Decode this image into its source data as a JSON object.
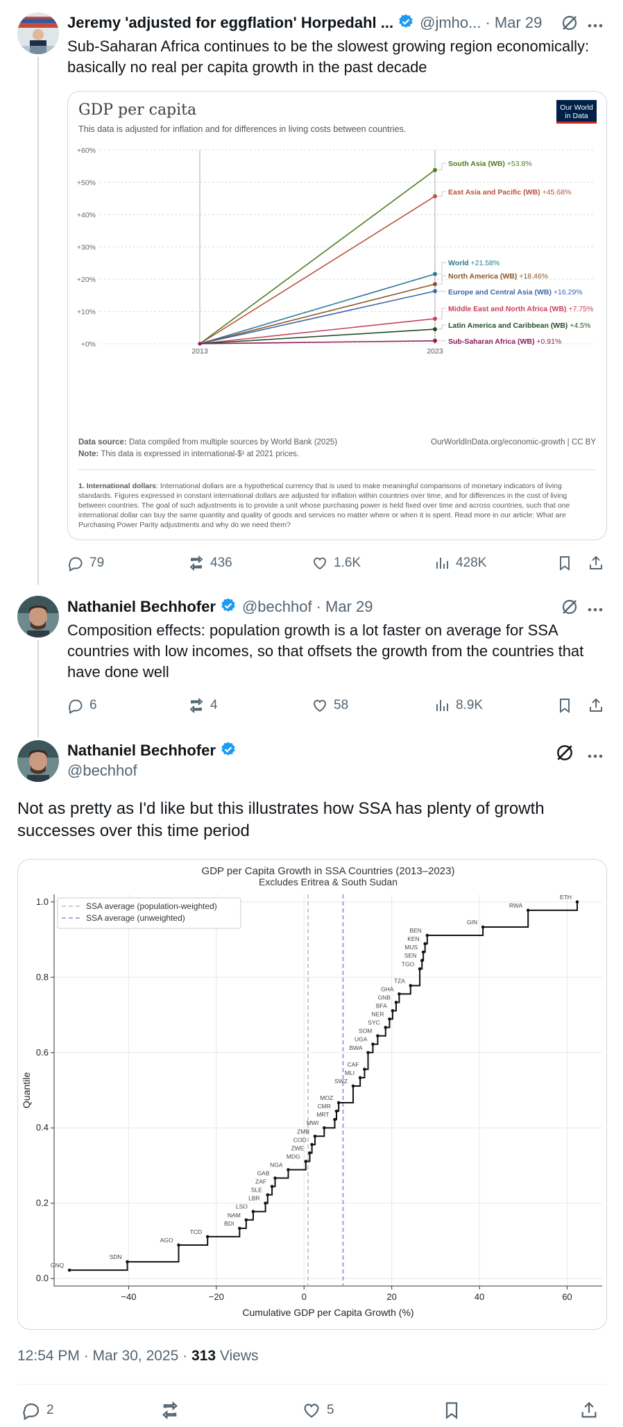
{
  "tweet1": {
    "name": "Jeremy 'adjusted for eggflation' Horpedahl ...",
    "handle": "@jmho...",
    "date": "· Mar 29",
    "text": "Sub-Saharan Africa continues to be the slowest growing region economically: basically no real per capita growth in the past decade",
    "stats": {
      "replies": "79",
      "retweets": "436",
      "likes": "1.6K",
      "views": "428K"
    },
    "chart": {
      "title": "GDP per capita",
      "subtitle": "This data is adjusted for inflation and for differences in living costs between countries.",
      "logo_line1": "Our World",
      "logo_line2": "in Data",
      "source_label": "Data source:",
      "source_text": "Data compiled from multiple sources by World Bank (2025)",
      "note_label": "Note:",
      "note_text": "This data is expressed in international-$¹ at 2021 prices.",
      "credit": "OurWorldInData.org/economic-growth | CC BY",
      "footnote_label": "1. International dollars",
      "footnote_text": ": International dollars are a hypothetical currency that is used to make meaningful comparisons of monetary indicators of living standards. Figures expressed in constant international dollars are adjusted for inflation within countries over time, and for differences in the cost of living between countries. The goal of such adjustments is to provide a unit whose purchasing power is held fixed over time and across countries, such that one international dollar can buy the same quantity and quality of goods and services no matter where or when it is spent. Read more in our article: What are Purchasing Power Parity adjustments and why do we need them?"
    }
  },
  "tweet2": {
    "name": "Nathaniel Bechhofer",
    "handle": "@bechhof",
    "date": "· Mar 29",
    "text": "Composition effects: population growth is a lot faster on average for SSA countries with low incomes, so that offsets the growth from the countries that have done well",
    "stats": {
      "replies": "6",
      "retweets": "4",
      "likes": "58",
      "views": "8.9K"
    }
  },
  "tweet3": {
    "name": "Nathaniel Bechhofer",
    "handle": "@bechhof",
    "text": "Not as pretty as I'd like but this illustrates how SSA has plenty of growth successes over this time period",
    "time": "12:54 PM · Mar 30, 2025 ·",
    "views_count": "313",
    "views_label": "Views",
    "stats": {
      "replies": "2",
      "likes": "5"
    }
  },
  "colors": {
    "accent": "#1d9bf0",
    "muted": "#536471",
    "border": "#cfd9de"
  },
  "chart_data": [
    {
      "type": "line",
      "title": "GDP per capita",
      "x": [
        "2013",
        "2023"
      ],
      "ylim": [
        0,
        60
      ],
      "yticks": [
        "+0%",
        "+10%",
        "+20%",
        "+30%",
        "+40%",
        "+50%",
        "+60%"
      ],
      "series": [
        {
          "name": "South Asia (WB)",
          "value_label": "+53.8%",
          "values": [
            0,
            53.8
          ],
          "color": "#4c7d1e"
        },
        {
          "name": "East Asia and Pacific (WB)",
          "value_label": "+45.68%",
          "values": [
            0,
            45.68
          ],
          "color": "#b9513b"
        },
        {
          "name": "World",
          "value_label": "+21.58%",
          "values": [
            0,
            21.58
          ],
          "color": "#287a94"
        },
        {
          "name": "North America (WB)",
          "value_label": "+18.46%",
          "values": [
            0,
            18.46
          ],
          "color": "#8b5524"
        },
        {
          "name": "Europe and Central Asia (WB)",
          "value_label": "+16.29%",
          "values": [
            0,
            16.29
          ],
          "color": "#3e66ac"
        },
        {
          "name": "Middle East and North Africa (WB)",
          "value_label": "+7.75%",
          "values": [
            0,
            7.75
          ],
          "color": "#c8405c"
        },
        {
          "name": "Latin America and Caribbean (WB)",
          "value_label": "+4.5%",
          "values": [
            0,
            4.5
          ],
          "color": "#1f4d23"
        },
        {
          "name": "Sub-Saharan Africa (WB)",
          "value_label": "+0.91%",
          "values": [
            0,
            0.91
          ],
          "color": "#8b1c5a"
        }
      ]
    },
    {
      "type": "line",
      "title": "GDP per Capita Growth in SSA Countries (2013–2023)",
      "subtitle": "Excludes Eritrea & South Sudan",
      "xlabel": "Cumulative GDP per Capita Growth (%)",
      "ylabel": "Quantile",
      "xlim": [
        -57,
        68
      ],
      "ylim": [
        -0.02,
        1.02
      ],
      "xticks": [
        "−40",
        "−20",
        "0",
        "20",
        "40",
        "60"
      ],
      "yticks": [
        "0.0",
        "0.2",
        "0.4",
        "0.6",
        "0.8",
        "1.0"
      ],
      "averages": [
        {
          "name": "SSA average (population-weighted)",
          "x": 0.9,
          "color": "#bbbbbb"
        },
        {
          "name": "SSA average (unweighted)",
          "x": 8.9,
          "color": "#8a8ae8"
        }
      ],
      "points": [
        {
          "code": "GNQ",
          "x": -53.5,
          "q": 0.0222
        },
        {
          "code": "SDN",
          "x": -40.3,
          "q": 0.0444
        },
        {
          "code": "AGO",
          "x": -28.6,
          "q": 0.0889
        },
        {
          "code": "TCD",
          "x": -22.0,
          "q": 0.1111
        },
        {
          "code": "BDI",
          "x": -14.7,
          "q": 0.1333
        },
        {
          "code": "NAM",
          "x": -13.2,
          "q": 0.1556
        },
        {
          "code": "LSO",
          "x": -11.6,
          "q": 0.1778
        },
        {
          "code": "LBR",
          "x": -8.8,
          "q": 0.2
        },
        {
          "code": "SLE",
          "x": -8.3,
          "q": 0.2222
        },
        {
          "code": "ZAF",
          "x": -7.3,
          "q": 0.2444
        },
        {
          "code": "GAB",
          "x": -6.6,
          "q": 0.2667
        },
        {
          "code": "NGA",
          "x": -3.6,
          "q": 0.2889
        },
        {
          "code": "MDG",
          "x": 0.4,
          "q": 0.3111
        },
        {
          "code": "ZWE",
          "x": 1.3,
          "q": 0.3333
        },
        {
          "code": "COD",
          "x": 1.8,
          "q": 0.3556
        },
        {
          "code": "ZMB",
          "x": 2.5,
          "q": 0.3778
        },
        {
          "code": "MWI",
          "x": 4.6,
          "q": 0.4
        },
        {
          "code": "MRT",
          "x": 7.0,
          "q": 0.4222
        },
        {
          "code": "CMR",
          "x": 7.4,
          "q": 0.4444
        },
        {
          "code": "MOZ",
          "x": 7.9,
          "q": 0.4667
        },
        {
          "code": "SWZ",
          "x": 11.2,
          "q": 0.5111
        },
        {
          "code": "MLI",
          "x": 12.8,
          "q": 0.5333
        },
        {
          "code": "CAF",
          "x": 13.8,
          "q": 0.5556
        },
        {
          "code": "BWA",
          "x": 14.6,
          "q": 0.6
        },
        {
          "code": "UGA",
          "x": 15.7,
          "q": 0.6222
        },
        {
          "code": "SOM",
          "x": 16.8,
          "q": 0.6444
        },
        {
          "code": "SYC",
          "x": 18.6,
          "q": 0.6667
        },
        {
          "code": "NER",
          "x": 19.5,
          "q": 0.6889
        },
        {
          "code": "BFA",
          "x": 20.2,
          "q": 0.7111
        },
        {
          "code": "GNB",
          "x": 21.0,
          "q": 0.7333
        },
        {
          "code": "GHA",
          "x": 21.7,
          "q": 0.7556
        },
        {
          "code": "TZA",
          "x": 24.3,
          "q": 0.7778
        },
        {
          "code": "TGO",
          "x": 26.4,
          "q": 0.8222
        },
        {
          "code": "SEN",
          "x": 26.9,
          "q": 0.8444
        },
        {
          "code": "MUS",
          "x": 27.2,
          "q": 0.8667
        },
        {
          "code": "KEN",
          "x": 27.6,
          "q": 0.8889
        },
        {
          "code": "BEN",
          "x": 28.1,
          "q": 0.9111
        },
        {
          "code": "GIN",
          "x": 40.8,
          "q": 0.9333
        },
        {
          "code": "RWA",
          "x": 51.1,
          "q": 0.9778
        },
        {
          "code": "ETH",
          "x": 62.3,
          "q": 1.0
        }
      ]
    }
  ]
}
